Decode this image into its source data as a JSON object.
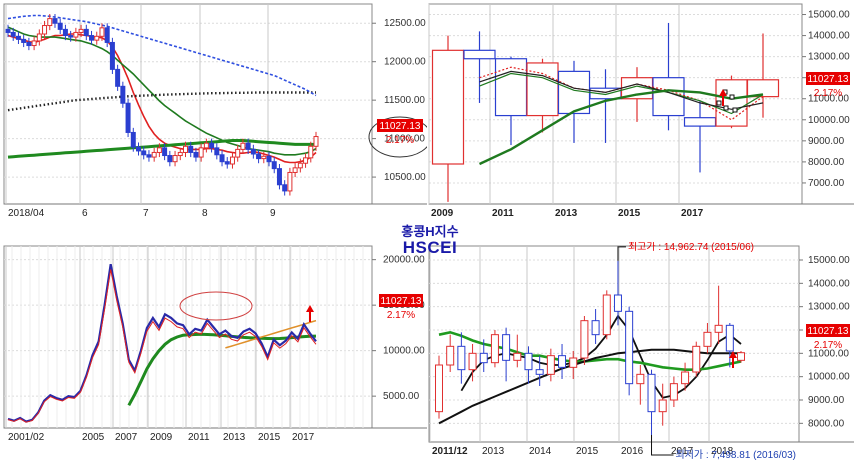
{
  "header": {
    "name_kr": "홍콩H지수",
    "code": "HSCEI"
  },
  "price": {
    "current": "11027.13",
    "change_pct": "2.17%"
  },
  "colors": {
    "candle_up": "#e03030",
    "candle_down": "#2a3fd0",
    "ma_red": "#e02020",
    "ma_green": "#1f7a1f",
    "highlight_red": "#e60000",
    "annot_blue": "#1d3fb0"
  },
  "chart_data": [
    {
      "id": "daily",
      "type": "candlestick",
      "x_tick_labels": [
        "2018/04",
        "6",
        "7",
        "8",
        "9"
      ],
      "y_tick_labels": [
        "12500.00",
        "12000.00",
        "11500.00",
        "11000.00",
        "10500.00"
      ],
      "ylim": [
        10150,
        12750
      ],
      "close": [
        12380,
        12330,
        12290,
        12250,
        12210,
        12270,
        12360,
        12470,
        12560,
        12500,
        12420,
        12340,
        12320,
        12380,
        12420,
        12340,
        12280,
        12330,
        12440,
        12250,
        11900,
        11680,
        11460,
        11080,
        10890,
        10840,
        10790,
        10760,
        10820,
        10880,
        10780,
        10700,
        10780,
        10820,
        10900,
        10820,
        10760,
        10880,
        10940,
        10880,
        10790,
        10700,
        10670,
        10760,
        10860,
        10940,
        10860,
        10800,
        10740,
        10770,
        10700,
        10610,
        10400,
        10320,
        10560,
        10620,
        10680,
        10750,
        10900,
        11027
      ],
      "lines": [
        {
          "name": "MA short",
          "color": "#e02020",
          "values": [
            12340,
            12320,
            12300,
            12280,
            12260,
            12250,
            12270,
            12290,
            12320,
            12340,
            12340,
            12350,
            12360,
            12360,
            12350,
            12340,
            12330,
            12320,
            12310,
            12270,
            12190,
            12080,
            11940,
            11780,
            11600,
            11440,
            11290,
            11160,
            11060,
            10990,
            10940,
            10910,
            10890,
            10870,
            10860,
            10860,
            10860,
            10860,
            10870,
            10870,
            10860,
            10850,
            10830,
            10820,
            10810,
            10810,
            10820,
            10830,
            10820,
            10800,
            10780,
            10760,
            10730,
            10700,
            10690,
            10690,
            10700,
            10720,
            10760,
            10820
          ]
        },
        {
          "name": "MA mid",
          "color": "#1f7a1f",
          "values": [
            12450,
            12420,
            12390,
            12360,
            12340,
            12330,
            12320,
            12320,
            12320,
            12320,
            12310,
            12300,
            12290,
            12280,
            12270,
            12250,
            12230,
            12200,
            12170,
            12130,
            12080,
            12020,
            11960,
            11900,
            11840,
            11770,
            11700,
            11630,
            11560,
            11490,
            11430,
            11380,
            11330,
            11280,
            11230,
            11190,
            11150,
            11110,
            11070,
            11040,
            11010,
            10980,
            10950,
            10930,
            10910,
            10890,
            10870,
            10860,
            10850,
            10840,
            10830,
            10810,
            10800,
            10790,
            10790,
            10790,
            10800,
            10810,
            10830,
            10870
          ]
        },
        {
          "name": "MA long",
          "color": "#1f8a1f",
          "values": [
            10760,
            10765,
            10770,
            10775,
            10780,
            10785,
            10790,
            10795,
            10800,
            10805,
            10810,
            10815,
            10820,
            10825,
            10830,
            10835,
            10840,
            10845,
            10850,
            10855,
            10860,
            10865,
            10870,
            10875,
            10880,
            10885,
            10890,
            10895,
            10900,
            10905,
            10910,
            10915,
            10920,
            10925,
            10930,
            10935,
            10940,
            10945,
            10950,
            10955,
            10960,
            10965,
            10970,
            10975,
            10975,
            10975,
            10970,
            10965,
            10960,
            10955,
            10950,
            10945,
            10940,
            10935,
            10930,
            10925,
            10925,
            10925,
            10925,
            10925
          ]
        },
        {
          "name": "dotted black",
          "color": "#222222",
          "values": [
            11370,
            11380,
            11390,
            11400,
            11410,
            11420,
            11430,
            11440,
            11450,
            11460,
            11470,
            11480,
            11490,
            11500,
            11505,
            11510,
            11515,
            11520,
            11525,
            11530,
            11535,
            11540,
            11545,
            11550,
            11553,
            11556,
            11559,
            11562,
            11565,
            11568,
            11571,
            11574,
            11576,
            11578,
            11580,
            11582,
            11584,
            11586,
            11588,
            11590,
            11591,
            11592,
            11593,
            11594,
            11595,
            11596,
            11597,
            11598,
            11599,
            11600,
            11600,
            11600,
            11600,
            11600,
            11600,
            11600,
            11600,
            11600,
            11600,
            11600
          ]
        },
        {
          "name": "dotted blue",
          "color": "#3050e0",
          "values": [
            12560,
            12570,
            12580,
            12590,
            12595,
            12600,
            12600,
            12595,
            12590,
            12580,
            12570,
            12560,
            12550,
            12540,
            12530,
            12520,
            12505,
            12490,
            12475,
            12460,
            12440,
            12420,
            12400,
            12380,
            12360,
            12340,
            12320,
            12300,
            12280,
            12260,
            12240,
            12220,
            12200,
            12180,
            12160,
            12140,
            12120,
            12100,
            12080,
            12060,
            12040,
            12020,
            12000,
            11980,
            11960,
            11940,
            11920,
            11900,
            11880,
            11860,
            11840,
            11820,
            11790,
            11760,
            11730,
            11700,
            11670,
            11640,
            11600,
            11560
          ]
        }
      ]
    },
    {
      "id": "yearly",
      "type": "candlestick",
      "x_tick_labels": [
        "2009",
        "2011",
        "2013",
        "2015",
        "2017"
      ],
      "y_tick_labels": [
        "15000.00",
        "14000.00",
        "13000.00",
        "12000.00",
        "11000.00",
        "10000.00",
        "9000.00",
        "8000.00",
        "7000.00"
      ],
      "ylim": [
        6000,
        15500
      ],
      "candles": [
        {
          "o": 7900,
          "c": 13300,
          "h": 14000,
          "l": 6100
        },
        {
          "o": 13300,
          "c": 12900,
          "h": 14200,
          "l": 10800
        },
        {
          "o": 12900,
          "c": 10200,
          "h": 13000,
          "l": 8800
        },
        {
          "o": 10200,
          "c": 12700,
          "h": 12900,
          "l": 9400
        },
        {
          "o": 12300,
          "c": 10300,
          "h": 12800,
          "l": 8900
        },
        {
          "o": 11500,
          "c": 11000,
          "h": 12400,
          "l": 8900
        },
        {
          "o": 11000,
          "c": 12000,
          "h": 12500,
          "l": 9900
        },
        {
          "o": 12000,
          "c": 10200,
          "h": 14600,
          "l": 9500
        },
        {
          "o": 10100,
          "c": 9700,
          "h": 10900,
          "l": 7500
        },
        {
          "o": 9700,
          "c": 11900,
          "h": 12100,
          "l": 9600
        },
        {
          "o": 11100,
          "c": 11900,
          "h": 14100,
          "l": 10100
        }
      ],
      "lines": [
        {
          "name": "MA red dotted",
          "color": "#e02020",
          "values": [
            null,
            12000,
            12500,
            12200,
            11500,
            11300,
            11700,
            11400,
            10900,
            10000,
            11100
          ]
        },
        {
          "name": "MA green thin",
          "color": "#1f7a1f",
          "values": [
            null,
            11600,
            12200,
            12000,
            11400,
            11200,
            11600,
            11300,
            10900,
            10300,
            11200
          ]
        },
        {
          "name": "MA black",
          "color": "#222222",
          "values": [
            null,
            11800,
            12300,
            12100,
            11500,
            11300,
            11700,
            11300,
            10800,
            10500,
            10800
          ]
        },
        {
          "name": "MA green thick",
          "color": "#1f7a1f",
          "values": [
            null,
            7900,
            8600,
            9500,
            10400,
            10900,
            11200,
            11400,
            11300,
            11000,
            11200
          ]
        }
      ]
    },
    {
      "id": "weekly",
      "type": "line",
      "x_tick_labels": [
        "2001/02",
        "2005",
        "2007",
        "2009",
        "2011",
        "2013",
        "2015",
        "2017"
      ],
      "y_tick_labels": [
        "20000.00",
        "15000.00",
        "10000.00",
        "5000.00"
      ],
      "ylim": [
        1500,
        21500
      ],
      "close": [
        2500,
        2300,
        2600,
        2200,
        2400,
        3200,
        4500,
        5100,
        4800,
        4600,
        5000,
        4900,
        5600,
        7300,
        9500,
        11000,
        15000,
        19500,
        16000,
        13000,
        9000,
        7800,
        10000,
        12500,
        13600,
        12600,
        14000,
        13600,
        13000,
        12800,
        11800,
        12400,
        12200,
        13400,
        12600,
        11800,
        12200,
        11600,
        11400,
        12100,
        12400,
        11900,
        10800,
        9300,
        11200,
        10600,
        11100,
        12000,
        11300,
        12900,
        11900,
        11027
      ],
      "lines": [
        {
          "name": "MA green",
          "color": "#1f8a1f",
          "values": [
            null,
            null,
            null,
            null,
            null,
            null,
            null,
            null,
            null,
            null,
            null,
            null,
            null,
            null,
            null,
            null,
            null,
            null,
            null,
            null,
            4000,
            5200,
            6600,
            8000,
            9100,
            10000,
            10700,
            11200,
            11500,
            11700,
            11750,
            11780,
            11800,
            11780,
            11740,
            11690,
            11630,
            11570,
            11510,
            11460,
            11420,
            11390,
            11360,
            11330,
            11320,
            11340,
            11380,
            11430,
            11490,
            11540,
            11580,
            11600
          ]
        },
        {
          "name": "MA orange",
          "color": "#e0902a",
          "values": [
            null,
            null,
            null,
            null,
            null,
            null,
            null,
            null,
            null,
            null,
            null,
            null,
            null,
            null,
            null,
            null,
            null,
            null,
            null,
            null,
            null,
            null,
            null,
            null,
            null,
            null,
            null,
            null,
            null,
            null,
            null,
            null,
            null,
            null,
            null,
            null,
            10300,
            10500,
            10700,
            10900,
            11100,
            11300,
            11500,
            11700,
            11900,
            12100,
            12300,
            12500,
            12700,
            12900,
            13100,
            13300
          ]
        }
      ]
    },
    {
      "id": "monthly",
      "type": "candlestick",
      "x_tick_labels": [
        "2011/12",
        "2013",
        "2014",
        "2015",
        "2016",
        "2017",
        "2018"
      ],
      "y_tick_labels": [
        "15000.00",
        "14000.00",
        "13000.00",
        "12000.00",
        "11000.00",
        "10000.00",
        "9000.00",
        "8000.00"
      ],
      "ylim": [
        7200,
        15600
      ],
      "candles": [
        {
          "o": 8500,
          "c": 10500,
          "h": 10900,
          "l": 8200
        },
        {
          "o": 10500,
          "c": 11300,
          "h": 11800,
          "l": 10200
        },
        {
          "o": 11300,
          "c": 10300,
          "h": 11900,
          "l": 9700
        },
        {
          "o": 10300,
          "c": 11000,
          "h": 11400,
          "l": 9800
        },
        {
          "o": 11000,
          "c": 10600,
          "h": 11600,
          "l": 10200
        },
        {
          "o": 10600,
          "c": 11800,
          "h": 12000,
          "l": 10400
        },
        {
          "o": 11800,
          "c": 10700,
          "h": 12100,
          "l": 9800
        },
        {
          "o": 10700,
          "c": 11000,
          "h": 11800,
          "l": 10400
        },
        {
          "o": 11000,
          "c": 10300,
          "h": 11300,
          "l": 9700
        },
        {
          "o": 10300,
          "c": 10100,
          "h": 10900,
          "l": 9600
        },
        {
          "o": 10100,
          "c": 10900,
          "h": 11200,
          "l": 9800
        },
        {
          "o": 10900,
          "c": 10400,
          "h": 11400,
          "l": 9900
        },
        {
          "o": 10400,
          "c": 10800,
          "h": 11100,
          "l": 9900
        },
        {
          "o": 10800,
          "c": 12400,
          "h": 12600,
          "l": 10500
        },
        {
          "o": 12400,
          "c": 11800,
          "h": 12900,
          "l": 11400
        },
        {
          "o": 11800,
          "c": 13500,
          "h": 13700,
          "l": 11600
        },
        {
          "o": 13500,
          "c": 12800,
          "h": 14963,
          "l": 12200
        },
        {
          "o": 12800,
          "c": 9700,
          "h": 13000,
          "l": 9200
        },
        {
          "o": 9700,
          "c": 10100,
          "h": 10500,
          "l": 8800
        },
        {
          "o": 10100,
          "c": 8500,
          "h": 10300,
          "l": 7499
        },
        {
          "o": 8500,
          "c": 9000,
          "h": 9700,
          "l": 7900
        },
        {
          "o": 9000,
          "c": 9700,
          "h": 10000,
          "l": 8700
        },
        {
          "o": 9700,
          "c": 10200,
          "h": 10600,
          "l": 9400
        },
        {
          "o": 10200,
          "c": 11300,
          "h": 11500,
          "l": 10000
        },
        {
          "o": 11300,
          "c": 11900,
          "h": 12300,
          "l": 11000
        },
        {
          "o": 11900,
          "c": 12200,
          "h": 13900,
          "l": 11400
        },
        {
          "o": 12200,
          "c": 11100,
          "h": 12300,
          "l": 10400
        },
        {
          "o": 10700,
          "c": 11027,
          "h": 11100,
          "l": 10600
        }
      ],
      "lines": [
        {
          "name": "MA black thin",
          "color": "#111111",
          "values": [
            null,
            null,
            9400,
            10200,
            10700,
            10900,
            11000,
            10900,
            10800,
            10600,
            10500,
            10500,
            10600,
            10800,
            11200,
            11800,
            12600,
            12000,
            10900,
            9800,
            9100,
            9200,
            9500,
            10000,
            10700,
            11500,
            11800,
            11400
          ]
        },
        {
          "name": "MA green",
          "color": "#1f9a1f",
          "values": [
            11800,
            11900,
            11750,
            11550,
            11400,
            11300,
            11200,
            11050,
            10900,
            10900,
            10800,
            10700,
            10650,
            10650,
            10700,
            10750,
            10750,
            10650,
            10600,
            10500,
            10400,
            10350,
            10300,
            10300,
            10350,
            10450,
            10550,
            10650
          ]
        },
        {
          "name": "MA black thick",
          "color": "#111111",
          "values": [
            8000,
            8250,
            8500,
            8750,
            8950,
            9150,
            9350,
            9550,
            9750,
            9950,
            10150,
            10350,
            10500,
            10650,
            10800,
            10900,
            11000,
            11050,
            11100,
            11150,
            11150,
            11150,
            11100,
            11050,
            11000,
            11000,
            11000,
            11000
          ]
        }
      ],
      "annotations": {
        "high_label": "최고가 : 14,962.74 (2015/06)",
        "low_label": "최저가 : 7,498.81 (2016/03)"
      }
    }
  ]
}
